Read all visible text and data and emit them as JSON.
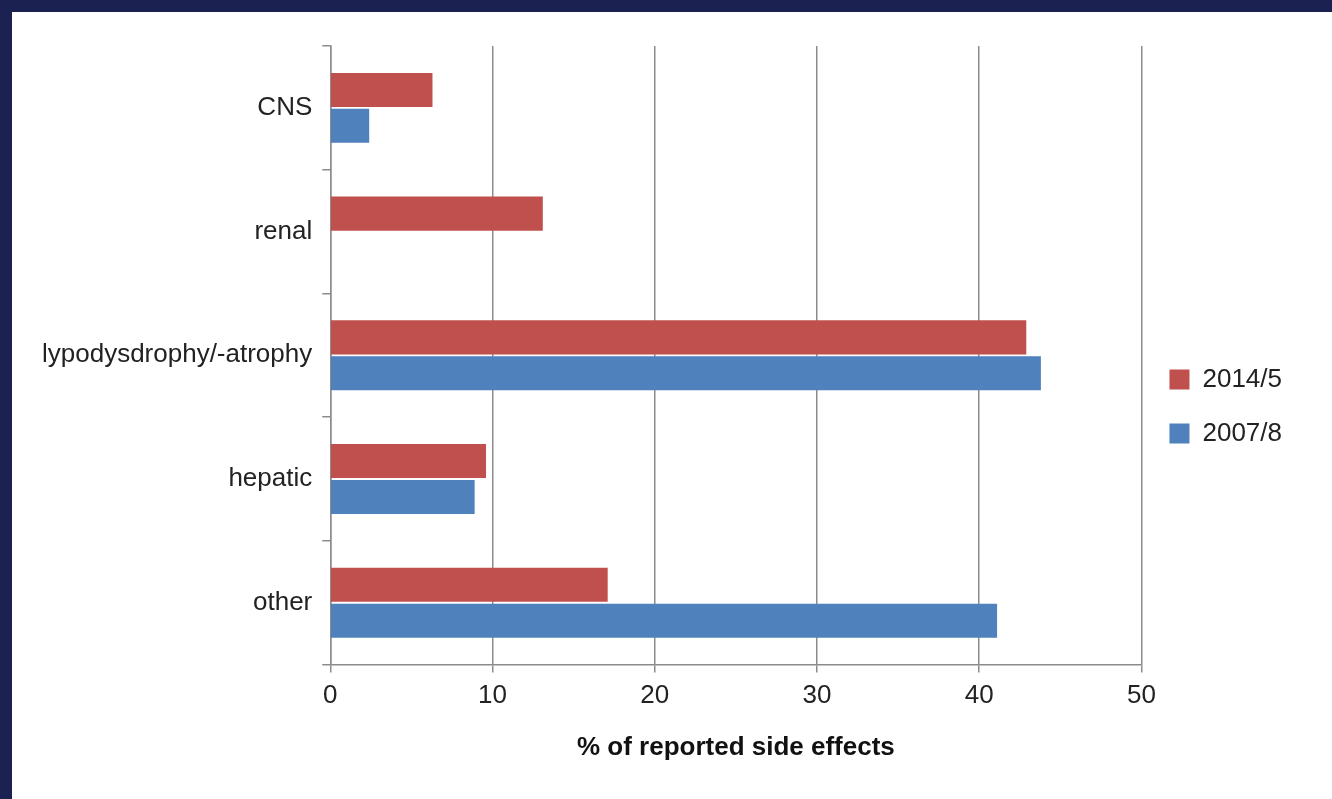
{
  "chart_data": {
    "type": "bar",
    "orientation": "horizontal",
    "xlabel": "% of reported side effects",
    "categories": [
      "CNS",
      "renal",
      "lypodysdrophy/-atrophy",
      "hepatic",
      "other"
    ],
    "series": [
      {
        "name": "2014/5",
        "color": "#c0504d",
        "values": [
          6.3,
          13.1,
          42.9,
          9.6,
          17.1
        ]
      },
      {
        "name": "2007/8",
        "color": "#4f81bd",
        "values": [
          2.4,
          null,
          43.8,
          8.9,
          41.1
        ]
      }
    ],
    "xlim": [
      0,
      50
    ],
    "xticks": [
      0,
      10,
      20,
      30,
      40,
      50
    ],
    "grid": "x",
    "legend": "right"
  }
}
